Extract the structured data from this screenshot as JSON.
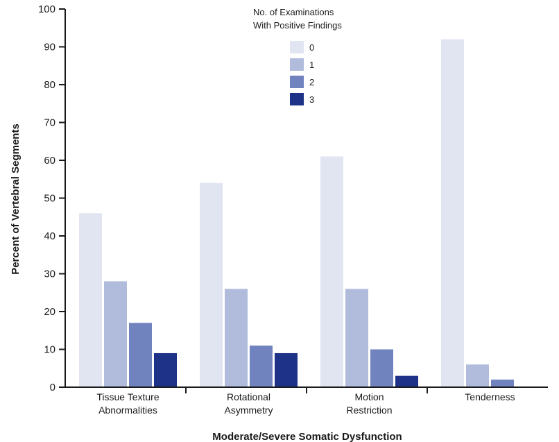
{
  "chart_data": {
    "type": "bar",
    "title": "",
    "xlabel": "Moderate/Severe Somatic Dysfunction",
    "ylabel": "Percent of Vertebral Segments",
    "ylim": [
      0,
      100
    ],
    "yticks": [
      0,
      10,
      20,
      30,
      40,
      50,
      60,
      70,
      80,
      90,
      100
    ],
    "categories": [
      [
        "Tissue Texture",
        "Abnormalities"
      ],
      [
        "Rotational",
        "Asymmetry"
      ],
      [
        "Motion",
        "Restriction"
      ],
      [
        "Tenderness"
      ]
    ],
    "legend": {
      "title": [
        "No. of Examinations",
        "With Positive Findings"
      ],
      "placement": "top-center"
    },
    "series": [
      {
        "name": "0",
        "color": "#e1e5f1",
        "values": [
          46,
          54,
          61,
          92
        ]
      },
      {
        "name": "1",
        "color": "#b1bcdd",
        "values": [
          28,
          26,
          26,
          6
        ]
      },
      {
        "name": "2",
        "color": "#7183bf",
        "values": [
          17,
          11,
          10,
          2
        ]
      },
      {
        "name": "3",
        "color": "#1e3388",
        "values": [
          9,
          9,
          3,
          0
        ]
      }
    ],
    "grid": false
  }
}
